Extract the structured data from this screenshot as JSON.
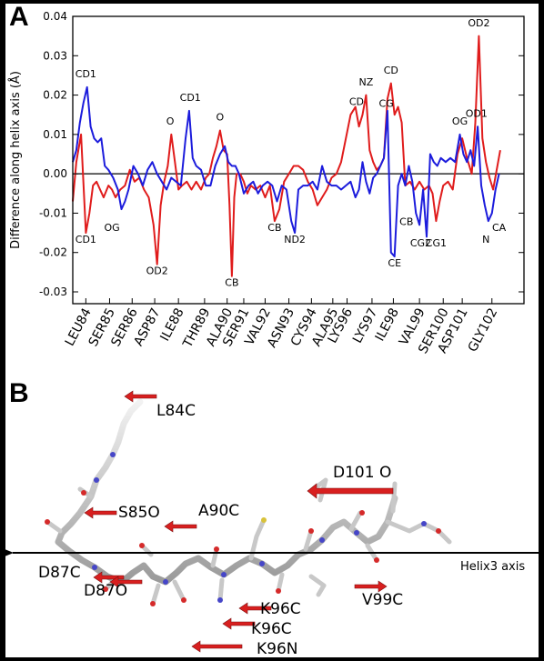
{
  "panels": {
    "a_label": "A",
    "b_label": "B"
  },
  "chart_data": {
    "type": "line",
    "ylabel": "Difference along helix axis (Å)",
    "ylim": [
      -0.033,
      0.04
    ],
    "yticks": [
      -0.03,
      -0.02,
      -0.01,
      0.0,
      0.01,
      0.02,
      0.03,
      0.04
    ],
    "ytick_labels": [
      "-0.03",
      "-0.02",
      "-0.01",
      "0.00",
      "0.01",
      "0.02",
      "0.03",
      "0.04"
    ],
    "xlim": [
      0,
      19
    ],
    "categories": [
      "LEU84",
      "SER85",
      "SER86",
      "ASP87",
      "ILE88",
      "THR89",
      "ALA90",
      "SER91",
      "VAL92",
      "ASN93",
      "CYS94",
      "ALA95",
      "LYS96",
      "LYS97",
      "ILE98",
      "VAL99",
      "SER100",
      "ASP101",
      "GLY102"
    ],
    "category_positions": [
      0.55,
      1.55,
      2.5,
      3.45,
      4.45,
      5.55,
      6.5,
      7.2,
      8.1,
      9.1,
      10.05,
      10.95,
      11.55,
      12.6,
      13.5,
      14.6,
      15.6,
      16.4,
      17.65
    ],
    "zero_line": true,
    "series": [
      {
        "color": "#e01c1c",
        "points": [
          [
            0.0,
            -0.007
          ],
          [
            0.15,
            0.003
          ],
          [
            0.35,
            0.01
          ],
          [
            0.55,
            -0.015
          ],
          [
            0.7,
            -0.01
          ],
          [
            0.85,
            -0.003
          ],
          [
            1.0,
            -0.002
          ],
          [
            1.15,
            -0.004
          ],
          [
            1.3,
            -0.006
          ],
          [
            1.5,
            -0.003
          ],
          [
            1.65,
            -0.004
          ],
          [
            1.8,
            -0.006
          ],
          [
            2.0,
            -0.004
          ],
          [
            2.2,
            -0.003
          ],
          [
            2.4,
            0.001
          ],
          [
            2.6,
            -0.002
          ],
          [
            2.8,
            -0.001
          ],
          [
            3.0,
            -0.004
          ],
          [
            3.2,
            -0.006
          ],
          [
            3.4,
            -0.013
          ],
          [
            3.55,
            -0.023
          ],
          [
            3.7,
            -0.008
          ],
          [
            3.85,
            -0.002
          ],
          [
            4.0,
            0.002
          ],
          [
            4.15,
            0.01
          ],
          [
            4.3,
            0.003
          ],
          [
            4.45,
            -0.004
          ],
          [
            4.6,
            -0.003
          ],
          [
            4.8,
            -0.002
          ],
          [
            5.0,
            -0.004
          ],
          [
            5.2,
            -0.002
          ],
          [
            5.4,
            -0.004
          ],
          [
            5.6,
            -0.001
          ],
          [
            5.75,
            0.0
          ],
          [
            5.9,
            0.004
          ],
          [
            6.05,
            0.007
          ],
          [
            6.2,
            0.011
          ],
          [
            6.35,
            0.006
          ],
          [
            6.5,
            0.005
          ],
          [
            6.6,
            -0.008
          ],
          [
            6.7,
            -0.026
          ],
          [
            6.8,
            -0.006
          ],
          [
            6.9,
            0.0
          ],
          [
            7.05,
            0.0
          ],
          [
            7.2,
            -0.002
          ],
          [
            7.35,
            -0.005
          ],
          [
            7.5,
            -0.003
          ],
          [
            7.7,
            -0.004
          ],
          [
            7.9,
            -0.003
          ],
          [
            8.1,
            -0.006
          ],
          [
            8.3,
            -0.003
          ],
          [
            8.5,
            -0.012
          ],
          [
            8.7,
            -0.009
          ],
          [
            8.9,
            -0.002
          ],
          [
            9.1,
            0.0
          ],
          [
            9.3,
            0.002
          ],
          [
            9.5,
            0.002
          ],
          [
            9.7,
            0.001
          ],
          [
            9.9,
            -0.002
          ],
          [
            10.1,
            -0.004
          ],
          [
            10.3,
            -0.008
          ],
          [
            10.5,
            -0.006
          ],
          [
            10.7,
            -0.004
          ],
          [
            10.9,
            -0.001
          ],
          [
            11.1,
            0.0
          ],
          [
            11.3,
            0.003
          ],
          [
            11.5,
            0.009
          ],
          [
            11.7,
            0.015
          ],
          [
            11.9,
            0.017
          ],
          [
            12.05,
            0.012
          ],
          [
            12.2,
            0.015
          ],
          [
            12.35,
            0.02
          ],
          [
            12.5,
            0.006
          ],
          [
            12.65,
            0.003
          ],
          [
            12.8,
            0.001
          ],
          [
            12.95,
            0.002
          ],
          [
            13.1,
            0.004
          ],
          [
            13.25,
            0.019
          ],
          [
            13.4,
            0.023
          ],
          [
            13.55,
            0.015
          ],
          [
            13.7,
            0.017
          ],
          [
            13.85,
            0.013
          ],
          [
            14.0,
            -0.003
          ],
          [
            14.2,
            -0.002
          ],
          [
            14.4,
            -0.004
          ],
          [
            14.6,
            -0.002
          ],
          [
            14.8,
            -0.004
          ],
          [
            15.0,
            -0.003
          ],
          [
            15.15,
            -0.005
          ],
          [
            15.3,
            -0.012
          ],
          [
            15.45,
            -0.007
          ],
          [
            15.6,
            -0.003
          ],
          [
            15.8,
            -0.002
          ],
          [
            16.0,
            -0.004
          ],
          [
            16.2,
            0.005
          ],
          [
            16.4,
            0.009
          ],
          [
            16.6,
            0.004
          ],
          [
            16.8,
            0.0
          ],
          [
            16.95,
            0.013
          ],
          [
            17.1,
            0.035
          ],
          [
            17.25,
            0.009
          ],
          [
            17.4,
            0.003
          ],
          [
            17.55,
            -0.001
          ],
          [
            17.7,
            -0.004
          ],
          [
            17.85,
            0.001
          ],
          [
            18.0,
            0.006
          ]
        ]
      },
      {
        "color": "#1c1cdc",
        "points": [
          [
            0.0,
            0.003
          ],
          [
            0.15,
            0.006
          ],
          [
            0.3,
            0.013
          ],
          [
            0.45,
            0.018
          ],
          [
            0.6,
            0.022
          ],
          [
            0.75,
            0.012
          ],
          [
            0.9,
            0.009
          ],
          [
            1.05,
            0.008
          ],
          [
            1.2,
            0.009
          ],
          [
            1.35,
            0.002
          ],
          [
            1.5,
            0.001
          ],
          [
            1.7,
            -0.001
          ],
          [
            1.9,
            -0.004
          ],
          [
            2.05,
            -0.009
          ],
          [
            2.2,
            -0.007
          ],
          [
            2.35,
            -0.004
          ],
          [
            2.55,
            0.002
          ],
          [
            2.75,
            0.0
          ],
          [
            2.95,
            -0.003
          ],
          [
            3.15,
            0.001
          ],
          [
            3.35,
            0.003
          ],
          [
            3.55,
            0.0
          ],
          [
            3.75,
            -0.002
          ],
          [
            3.95,
            -0.004
          ],
          [
            4.15,
            -0.001
          ],
          [
            4.35,
            -0.002
          ],
          [
            4.55,
            -0.003
          ],
          [
            4.75,
            0.009
          ],
          [
            4.9,
            0.016
          ],
          [
            5.05,
            0.004
          ],
          [
            5.2,
            0.002
          ],
          [
            5.4,
            0.001
          ],
          [
            5.6,
            -0.003
          ],
          [
            5.8,
            -0.003
          ],
          [
            6.0,
            0.002
          ],
          [
            6.2,
            0.005
          ],
          [
            6.4,
            0.007
          ],
          [
            6.55,
            0.003
          ],
          [
            6.7,
            0.002
          ],
          [
            6.85,
            0.002
          ],
          [
            7.0,
            0.0
          ],
          [
            7.2,
            -0.005
          ],
          [
            7.4,
            -0.003
          ],
          [
            7.6,
            -0.002
          ],
          [
            7.8,
            -0.005
          ],
          [
            8.0,
            -0.003
          ],
          [
            8.2,
            -0.002
          ],
          [
            8.4,
            -0.003
          ],
          [
            8.6,
            -0.007
          ],
          [
            8.8,
            -0.003
          ],
          [
            9.0,
            -0.004
          ],
          [
            9.2,
            -0.012
          ],
          [
            9.35,
            -0.015
          ],
          [
            9.5,
            -0.004
          ],
          [
            9.7,
            -0.003
          ],
          [
            9.9,
            -0.003
          ],
          [
            10.1,
            -0.002
          ],
          [
            10.3,
            -0.004
          ],
          [
            10.5,
            0.002
          ],
          [
            10.7,
            -0.002
          ],
          [
            10.9,
            -0.003
          ],
          [
            11.1,
            -0.003
          ],
          [
            11.3,
            -0.004
          ],
          [
            11.5,
            -0.003
          ],
          [
            11.7,
            -0.002
          ],
          [
            11.9,
            -0.006
          ],
          [
            12.05,
            -0.004
          ],
          [
            12.2,
            0.003
          ],
          [
            12.35,
            -0.002
          ],
          [
            12.5,
            -0.005
          ],
          [
            12.65,
            -0.001
          ],
          [
            12.8,
            0.0
          ],
          [
            12.95,
            0.002
          ],
          [
            13.1,
            0.004
          ],
          [
            13.25,
            0.016
          ],
          [
            13.4,
            -0.02
          ],
          [
            13.55,
            -0.021
          ],
          [
            13.7,
            -0.003
          ],
          [
            13.85,
            0.0
          ],
          [
            14.0,
            -0.003
          ],
          [
            14.15,
            0.002
          ],
          [
            14.3,
            -0.002
          ],
          [
            14.45,
            -0.01
          ],
          [
            14.6,
            -0.013
          ],
          [
            14.75,
            -0.004
          ],
          [
            14.9,
            -0.016
          ],
          [
            15.05,
            0.005
          ],
          [
            15.2,
            0.003
          ],
          [
            15.35,
            0.002
          ],
          [
            15.5,
            0.004
          ],
          [
            15.7,
            0.003
          ],
          [
            15.9,
            0.004
          ],
          [
            16.1,
            0.003
          ],
          [
            16.3,
            0.01
          ],
          [
            16.45,
            0.005
          ],
          [
            16.6,
            0.003
          ],
          [
            16.75,
            0.006
          ],
          [
            16.9,
            0.002
          ],
          [
            17.05,
            0.012
          ],
          [
            17.2,
            -0.003
          ],
          [
            17.35,
            -0.008
          ],
          [
            17.5,
            -0.012
          ],
          [
            17.65,
            -0.01
          ],
          [
            17.8,
            -0.004
          ],
          [
            17.95,
            0.0
          ]
        ]
      }
    ],
    "annotations": [
      {
        "text": "CD1",
        "x": 0.55,
        "y": 0.0245
      },
      {
        "text": "CD1",
        "x": 0.55,
        "y": -0.0175
      },
      {
        "text": "OG",
        "x": 1.65,
        "y": -0.0145
      },
      {
        "text": "OD2",
        "x": 3.55,
        "y": -0.0255
      },
      {
        "text": "O",
        "x": 4.1,
        "y": 0.0125
      },
      {
        "text": "CD1",
        "x": 4.95,
        "y": 0.0185
      },
      {
        "text": "O",
        "x": 6.2,
        "y": 0.0135
      },
      {
        "text": "CB",
        "x": 6.7,
        "y": -0.0285
      },
      {
        "text": "CB",
        "x": 8.5,
        "y": -0.0145
      },
      {
        "text": "ND2",
        "x": 9.35,
        "y": -0.0175
      },
      {
        "text": "CD",
        "x": 11.95,
        "y": 0.0175
      },
      {
        "text": "NZ",
        "x": 12.35,
        "y": 0.0225
      },
      {
        "text": "CD",
        "x": 13.4,
        "y": 0.0255
      },
      {
        "text": "CG",
        "x": 13.2,
        "y": 0.017
      },
      {
        "text": "CB",
        "x": 14.05,
        "y": -0.013
      },
      {
        "text": "CE",
        "x": 13.55,
        "y": -0.0235
      },
      {
        "text": "CG2",
        "x": 14.65,
        "y": -0.0185
      },
      {
        "text": "CG1",
        "x": 15.3,
        "y": -0.0185
      },
      {
        "text": "OG",
        "x": 16.3,
        "y": 0.0125
      },
      {
        "text": "OD1",
        "x": 17.0,
        "y": 0.0145
      },
      {
        "text": "OD2",
        "x": 17.1,
        "y": 0.0375
      },
      {
        "text": "N",
        "x": 17.4,
        "y": -0.0175
      },
      {
        "text": "CA",
        "x": 17.95,
        "y": -0.0145
      }
    ]
  },
  "structure_panel": {
    "axis_label": "Helix3 axis",
    "residue_labels": [
      "L84C",
      "S85O",
      "A90C",
      "D101 O",
      "D87C",
      "D87O",
      "V99C",
      "K96C",
      "K96C",
      "K96N"
    ],
    "arrow_color": "#d81f1f"
  }
}
